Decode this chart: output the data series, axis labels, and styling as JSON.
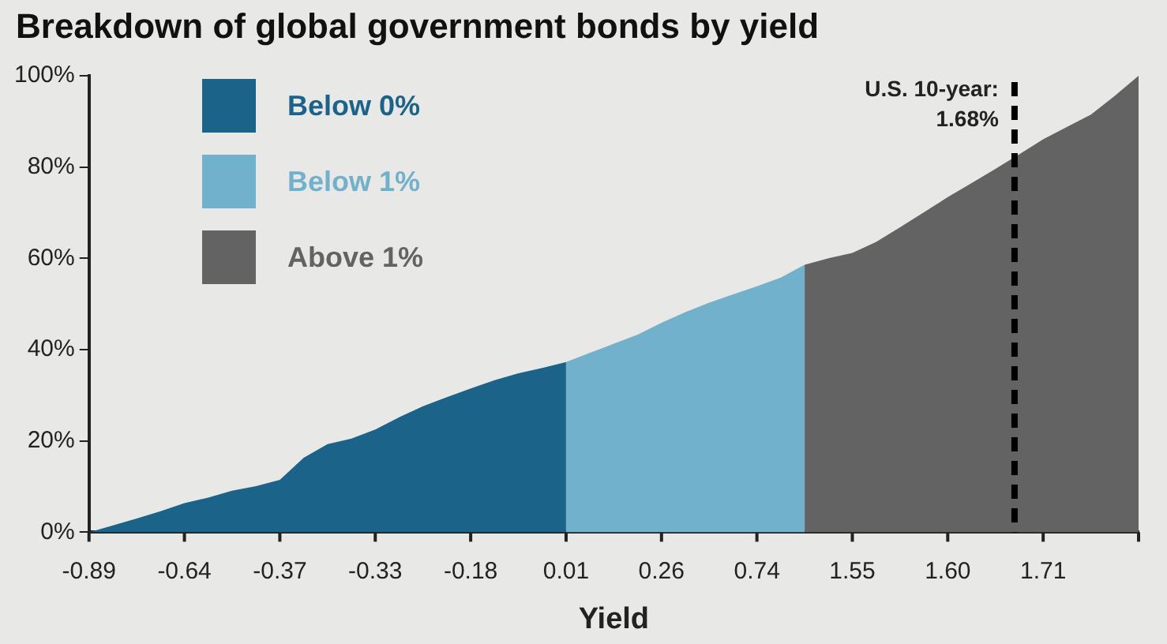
{
  "chart_data": {
    "type": "area",
    "title": "Breakdown of global government bonds by yield",
    "xlabel": "Yield",
    "categories": [
      "-0.89",
      null,
      null,
      null,
      "-0.64",
      null,
      null,
      null,
      "-0.37",
      null,
      null,
      null,
      "-0.33",
      null,
      null,
      null,
      "-0.18",
      null,
      null,
      null,
      "0.01",
      null,
      null,
      null,
      "0.26",
      null,
      null,
      null,
      "0.74",
      null,
      null,
      null,
      "1.55",
      null,
      null,
      null,
      "1.60",
      null,
      null,
      null,
      "1.71",
      null,
      null,
      null,
      null
    ],
    "series": [
      {
        "name": "Below 0%",
        "color": "#1b6389",
        "values": [
          0,
          1.5,
          3.0,
          4.6,
          6.4,
          7.6,
          9.1,
          10.1,
          11.5,
          16.3,
          19.3,
          20.5,
          22.5,
          25.2,
          27.6,
          29.6,
          31.5,
          33.3,
          34.8,
          36.0,
          37.3,
          null,
          null,
          null,
          null,
          null,
          null,
          null,
          null,
          null,
          null,
          null,
          null,
          null,
          null,
          null,
          null,
          null,
          null,
          null,
          null,
          null,
          null,
          null,
          null
        ]
      },
      {
        "name": "Below 1%",
        "color": "#72b1cc",
        "values": [
          null,
          null,
          null,
          null,
          null,
          null,
          null,
          null,
          null,
          null,
          null,
          null,
          null,
          null,
          null,
          null,
          null,
          null,
          null,
          null,
          37.3,
          39.3,
          41.3,
          43.3,
          45.9,
          48.2,
          50.3,
          52.1,
          53.9,
          55.8,
          58.6,
          null,
          null,
          null,
          null,
          null,
          null,
          null,
          null,
          null,
          null,
          null,
          null,
          null,
          null
        ]
      },
      {
        "name": "Above 1%",
        "color": "#636363",
        "values": [
          null,
          null,
          null,
          null,
          null,
          null,
          null,
          null,
          null,
          null,
          null,
          null,
          null,
          null,
          null,
          null,
          null,
          null,
          null,
          null,
          null,
          null,
          null,
          null,
          null,
          null,
          null,
          null,
          null,
          null,
          58.6,
          60.0,
          61.2,
          63.6,
          66.8,
          70.1,
          73.4,
          76.5,
          79.6,
          82.8,
          86.1,
          88.8,
          91.5,
          95.6,
          100
        ]
      }
    ],
    "ylim": [
      0,
      100
    ],
    "yticks": [
      {
        "value": 0,
        "label": "0%"
      },
      {
        "value": 20,
        "label": "20%"
      },
      {
        "value": 40,
        "label": "40%"
      },
      {
        "value": 60,
        "label": "60%"
      },
      {
        "value": 80,
        "label": "80%"
      },
      {
        "value": 100,
        "label": "100%"
      }
    ],
    "annotations": [
      "U.S. 10-year:\n1.68%"
    ],
    "legend": "top left",
    "grid": false
  }
}
